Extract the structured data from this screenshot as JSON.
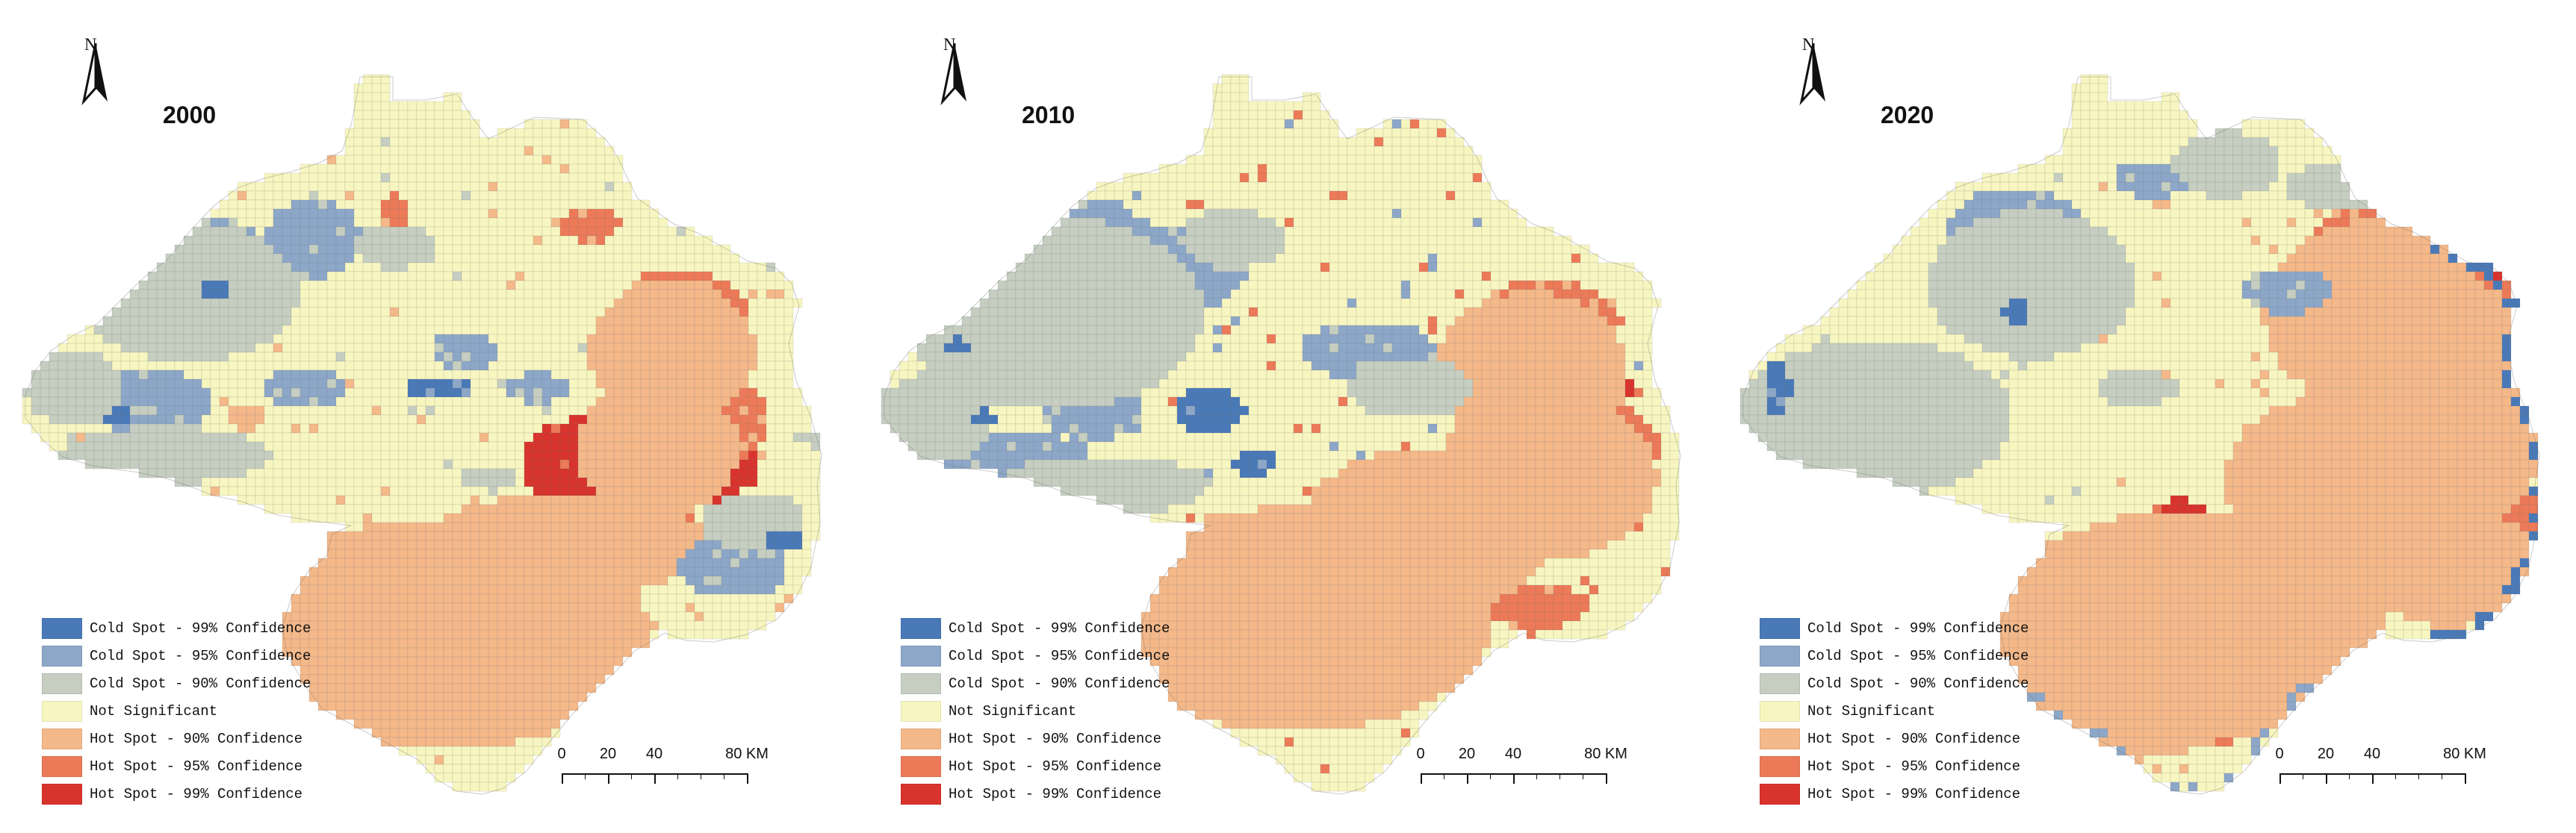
{
  "figure": {
    "north_label": "N",
    "scale": {
      "ticks": [
        "0",
        "20",
        "40",
        "80 KM"
      ]
    }
  },
  "legend": [
    {
      "label": "Cold Spot - 99% Confidence",
      "color": "#4a79b8"
    },
    {
      "label": "Cold Spot - 95% Confidence",
      "color": "#8da7c8"
    },
    {
      "label": "Cold Spot - 90% Confidence",
      "color": "#c5cec0"
    },
    {
      "label": "Not Significant",
      "color": "#f8f6c0"
    },
    {
      "label": "Hot Spot - 90% Confidence",
      "color": "#f4b889"
    },
    {
      "label": "Hot Spot - 95% Confidence",
      "color": "#ec7a58"
    },
    {
      "label": "Hot Spot - 99% Confidence",
      "color": "#d8342d"
    }
  ],
  "panels": [
    {
      "year": "2000"
    },
    {
      "year": "2010"
    },
    {
      "year": "2020"
    }
  ]
}
